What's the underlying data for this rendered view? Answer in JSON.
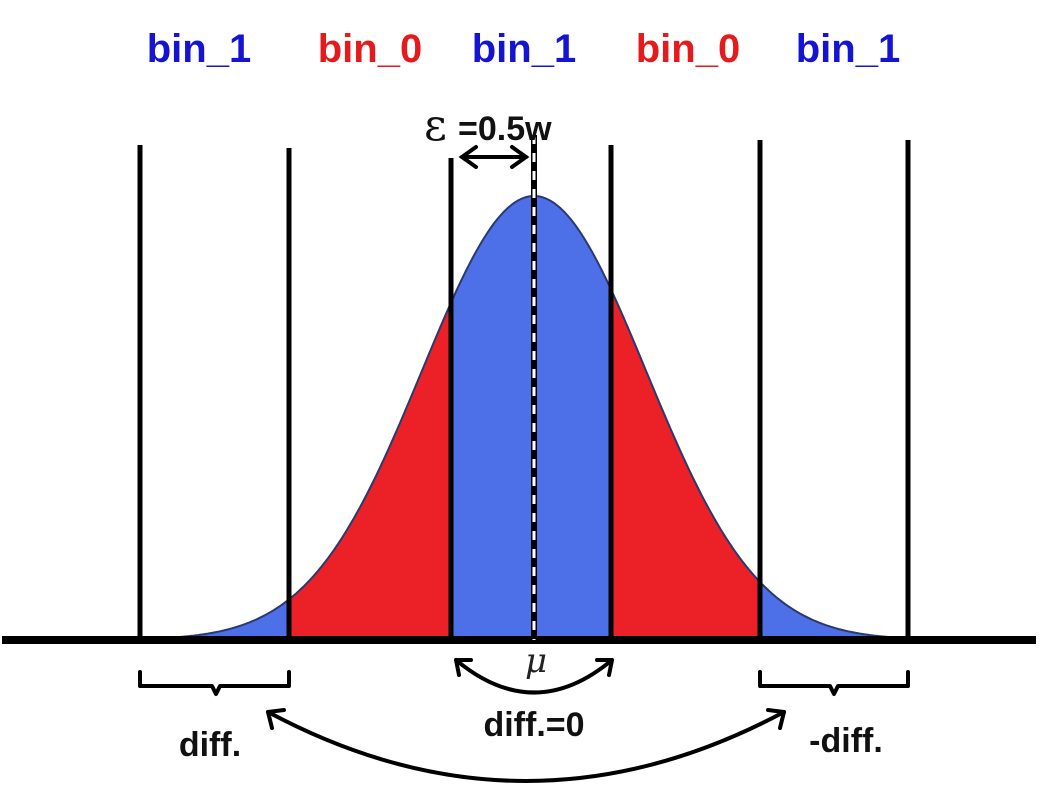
{
  "colors": {
    "bin_1": "#1414d2",
    "bin_0": "#e41a1c",
    "fill_blue": "#4d6fe8",
    "fill_red": "#ec2027",
    "line": "#000000"
  },
  "bin_labels": [
    {
      "text": "bin_1",
      "bin": "bin_1"
    },
    {
      "text": "bin_0",
      "bin": "bin_0"
    },
    {
      "text": "bin_1",
      "bin": "bin_1"
    },
    {
      "text": "bin_0",
      "bin": "bin_0"
    },
    {
      "text": "bin_1",
      "bin": "bin_1"
    }
  ],
  "epsilon": {
    "symbol": "ε",
    "text": "=0.5w"
  },
  "mu": "μ",
  "brackets": {
    "left": "diff.",
    "center": "diff.=0",
    "right": "-diff."
  },
  "icons": [
    "double-arrow-icon",
    "curved-arrow-icon",
    "brace-icon"
  ]
}
